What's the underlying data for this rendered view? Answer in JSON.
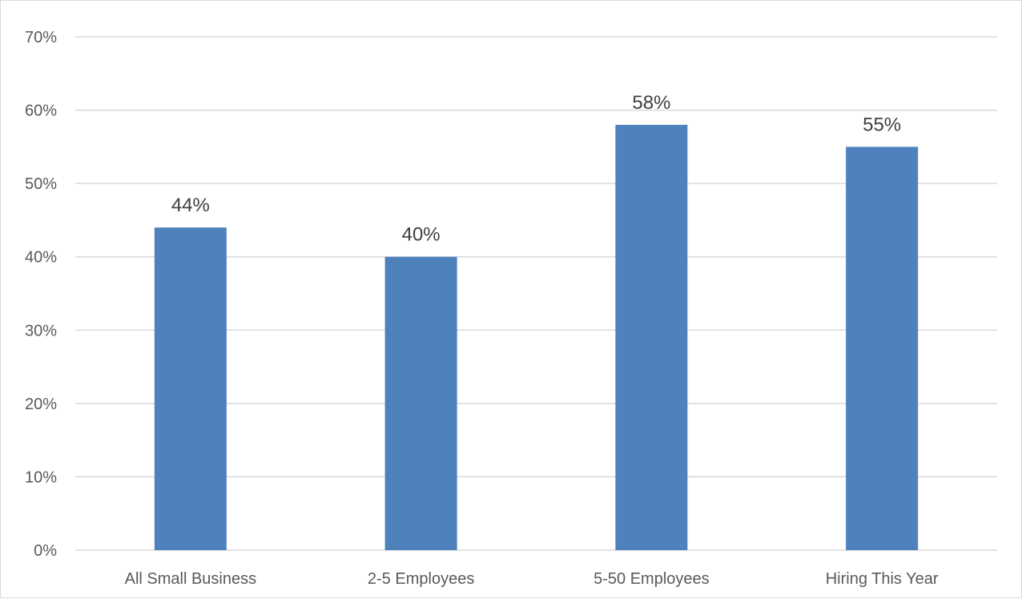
{
  "chart_data": {
    "type": "bar",
    "title": "",
    "xlabel": "",
    "ylabel": "",
    "categories": [
      "All Small Business",
      "2-5 Employees",
      "5-50 Employees",
      "Hiring This Year"
    ],
    "values": [
      44,
      40,
      58,
      55
    ],
    "data_labels": [
      "44%",
      "40%",
      "58%",
      "55%"
    ],
    "ylim": [
      0,
      70
    ],
    "y_ticks": [
      0,
      10,
      20,
      30,
      40,
      50,
      60,
      70
    ],
    "y_tick_labels": [
      "0%",
      "10%",
      "20%",
      "30%",
      "40%",
      "50%",
      "60%",
      "70%"
    ],
    "grid": true,
    "legend": "none",
    "bar_color": "#4f81bd"
  }
}
